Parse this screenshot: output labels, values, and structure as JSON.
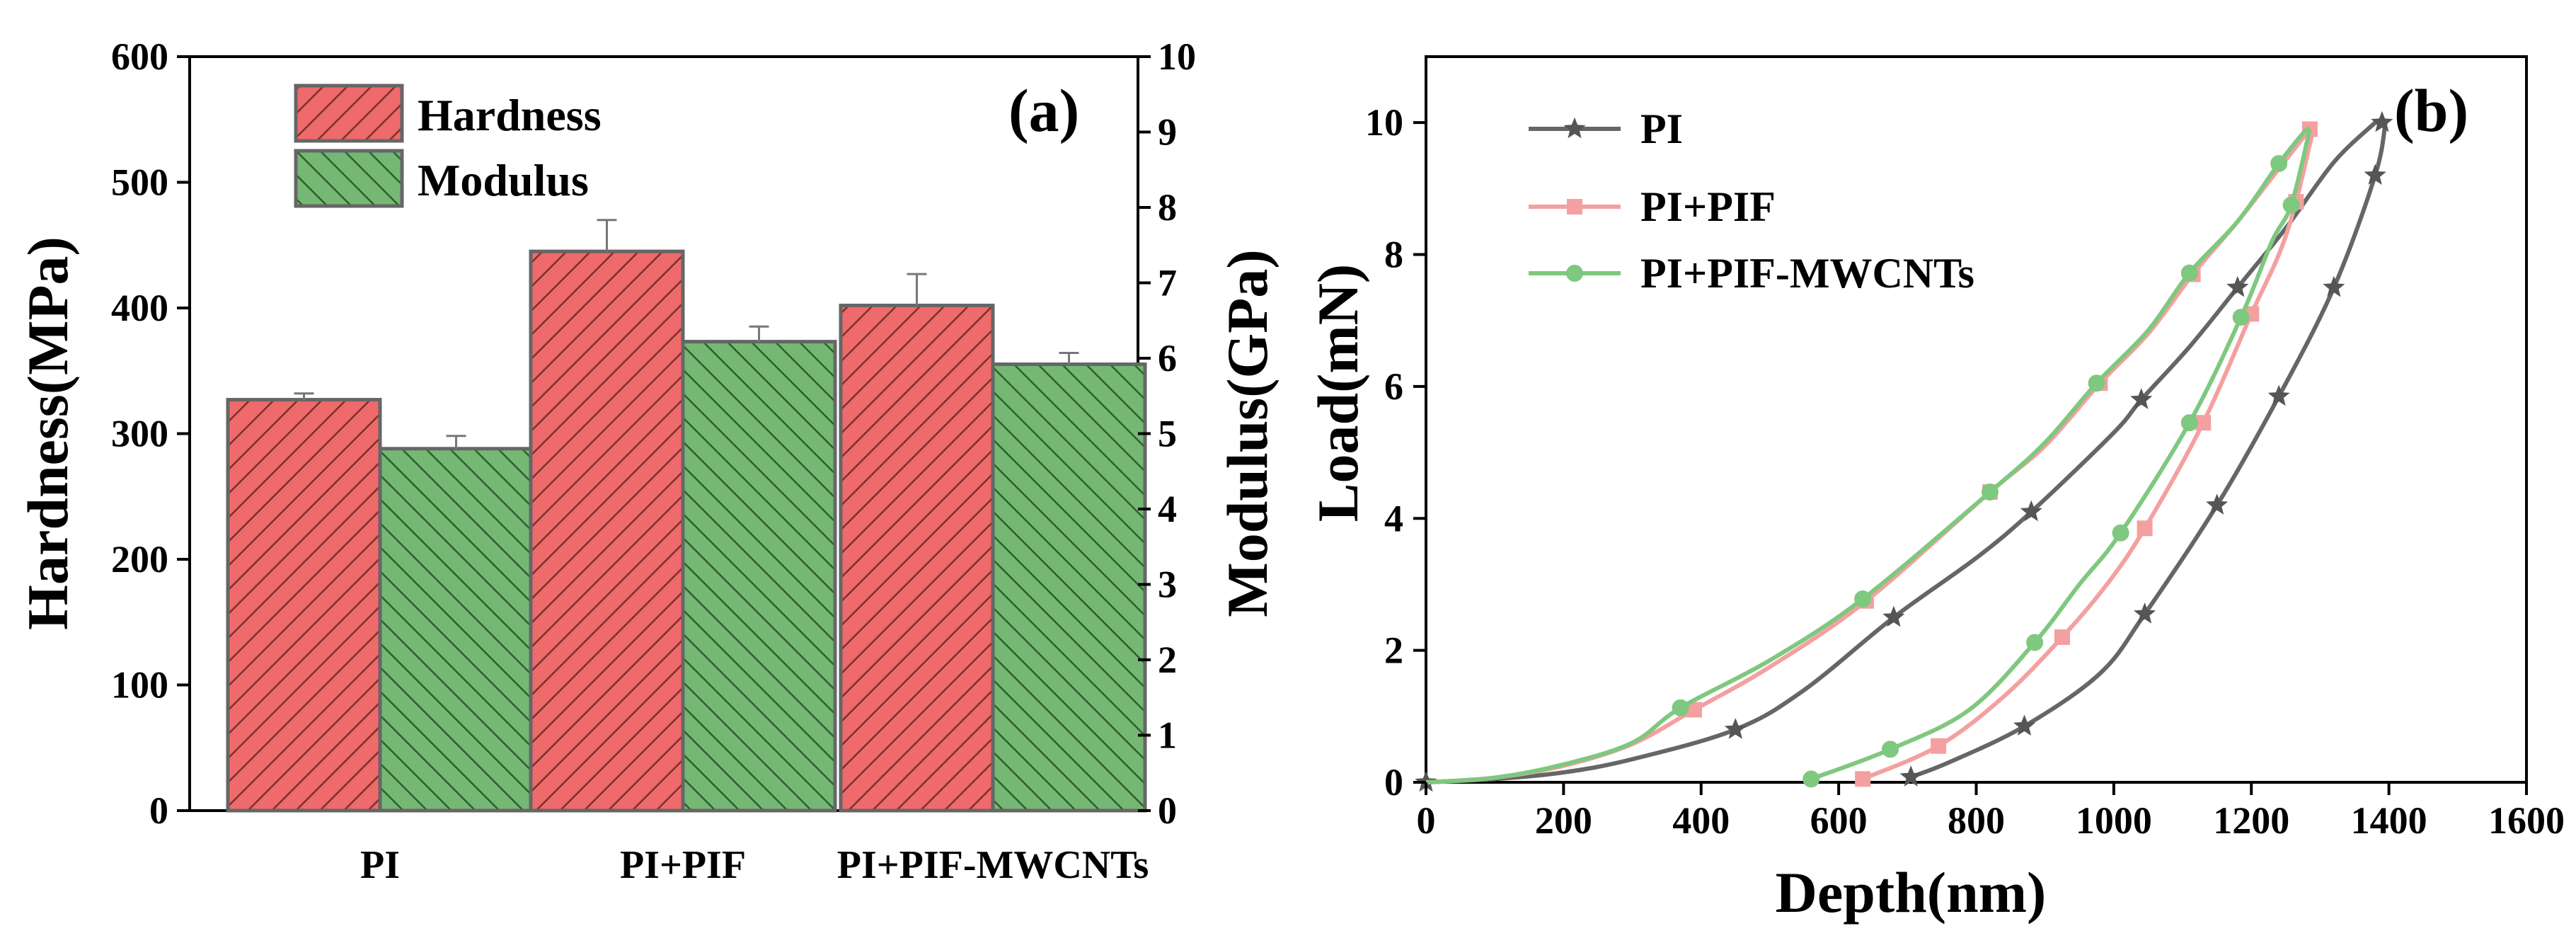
{
  "chart_data": [
    {
      "panel": "(a)",
      "type": "bar",
      "categories": [
        "PI",
        "PI+PIF",
        "PI+PIF-MWCNTs"
      ],
      "ylabel_left": "Hardness(MPa)",
      "ylabel_right": "Modulus(GPa)",
      "ylim_left": [
        0,
        600
      ],
      "ylim_right": [
        0,
        10
      ],
      "yticks_left": [
        "0",
        "100",
        "200",
        "300",
        "400",
        "500",
        "600"
      ],
      "yticks_right": [
        "0",
        "1",
        "2",
        "3",
        "4",
        "5",
        "6",
        "7",
        "8",
        "9",
        "10"
      ],
      "legend_position": "top-left",
      "series": [
        {
          "name": "Hardness",
          "axis": "left",
          "color": "#ef6a6a",
          "hatch_color": "#7a3030",
          "values": [
            327,
            445,
            402
          ],
          "errors": [
            5,
            25,
            25
          ]
        },
        {
          "name": "Modulus",
          "axis": "right",
          "color": "#74b874",
          "hatch_color": "#2f5e2f",
          "values": [
            4.8,
            6.22,
            5.92
          ],
          "errors": [
            0.17,
            0.2,
            0.15
          ]
        }
      ]
    },
    {
      "panel": "(b)",
      "type": "line",
      "xlabel": "Depth(nm)",
      "ylabel": "Load(mN)",
      "xlim": [
        0,
        1600
      ],
      "ylim": [
        0,
        11
      ],
      "xticks": [
        "0",
        "200",
        "400",
        "600",
        "800",
        "1000",
        "1200",
        "1400",
        "1600"
      ],
      "yticks": [
        "0",
        "2",
        "4",
        "6",
        "8",
        "10"
      ],
      "legend_position": "top-left",
      "series": [
        {
          "name": "PI",
          "color": "#666666",
          "marker": "star",
          "loading": [
            [
              0,
              0
            ],
            [
              100,
              0.05
            ],
            [
              200,
              0.15
            ],
            [
              300,
              0.35
            ],
            [
              450,
              0.8
            ],
            [
              550,
              1.4
            ],
            [
              680,
              2.5
            ],
            [
              800,
              3.4
            ],
            [
              880,
              4.1
            ],
            [
              1000,
              5.3
            ],
            [
              1040,
              5.8
            ],
            [
              1110,
              6.6
            ],
            [
              1180,
              7.5
            ],
            [
              1250,
              8.4
            ],
            [
              1320,
              9.4
            ],
            [
              1380,
              10.0
            ]
          ],
          "unloading": [
            [
              1395,
              10.0
            ],
            [
              1380,
              9.2
            ],
            [
              1320,
              7.5
            ],
            [
              1240,
              5.85
            ],
            [
              1150,
              4.2
            ],
            [
              1045,
              2.55
            ],
            [
              980,
              1.65
            ],
            [
              870,
              0.85
            ],
            [
              760,
              0.3
            ],
            [
              705,
              0.08
            ]
          ],
          "markers": [
            [
              0,
              0
            ],
            [
              450,
              0.8
            ],
            [
              680,
              2.5
            ],
            [
              880,
              4.1
            ],
            [
              1040,
              5.8
            ],
            [
              1180,
              7.5
            ],
            [
              1390,
              10.0
            ],
            [
              1380,
              9.2
            ],
            [
              1320,
              7.5
            ],
            [
              1240,
              5.85
            ],
            [
              1150,
              4.2
            ],
            [
              1045,
              2.55
            ],
            [
              870,
              0.85
            ],
            [
              705,
              0.08
            ]
          ]
        },
        {
          "name": "PI+PIF",
          "color": "#f4a0a0",
          "marker": "square",
          "loading": [
            [
              0,
              0
            ],
            [
              100,
              0.07
            ],
            [
              200,
              0.25
            ],
            [
              300,
              0.58
            ],
            [
              390,
              1.1
            ],
            [
              500,
              1.75
            ],
            [
              640,
              2.75
            ],
            [
              820,
              4.4
            ],
            [
              900,
              5.1
            ],
            [
              980,
              6.05
            ],
            [
              1050,
              6.8
            ],
            [
              1115,
              7.7
            ],
            [
              1180,
              8.5
            ],
            [
              1240,
              9.3
            ],
            [
              1285,
              9.9
            ]
          ],
          "unloading": [
            [
              1290,
              9.9
            ],
            [
              1265,
              8.8
            ],
            [
              1240,
              8.0
            ],
            [
              1200,
              7.1
            ],
            [
              1130,
              5.45
            ],
            [
              1045,
              3.85
            ],
            [
              990,
              3.0
            ],
            [
              925,
              2.2
            ],
            [
              840,
              1.3
            ],
            [
              745,
              0.55
            ],
            [
              635,
              0.05
            ]
          ],
          "markers": [
            [
              390,
              1.1
            ],
            [
              640,
              2.75
            ],
            [
              820,
              4.4
            ],
            [
              980,
              6.05
            ],
            [
              1115,
              7.7
            ],
            [
              1285,
              9.9
            ],
            [
              1265,
              8.8
            ],
            [
              1200,
              7.1
            ],
            [
              1130,
              5.45
            ],
            [
              1045,
              3.85
            ],
            [
              925,
              2.2
            ],
            [
              745,
              0.55
            ],
            [
              635,
              0.05
            ]
          ]
        },
        {
          "name": "PI+PIF-MWCNTs",
          "color": "#7fc87f",
          "marker": "circle",
          "loading": [
            [
              0,
              0
            ],
            [
              100,
              0.07
            ],
            [
              200,
              0.27
            ],
            [
              300,
              0.6
            ],
            [
              370,
              1.13
            ],
            [
              500,
              1.85
            ],
            [
              635,
              2.78
            ],
            [
              820,
              4.4
            ],
            [
              900,
              5.15
            ],
            [
              975,
              6.05
            ],
            [
              1050,
              6.85
            ],
            [
              1110,
              7.72
            ],
            [
              1180,
              8.5
            ],
            [
              1240,
              9.38
            ],
            [
              1280,
              9.9
            ]
          ],
          "unloading": [
            [
              1285,
              9.9
            ],
            [
              1258,
              8.75
            ],
            [
              1230,
              8.2
            ],
            [
              1185,
              7.05
            ],
            [
              1110,
              5.45
            ],
            [
              1010,
              3.78
            ],
            [
              950,
              3.0
            ],
            [
              885,
              2.12
            ],
            [
              790,
              1.1
            ],
            [
              675,
              0.5
            ],
            [
              560,
              0.05
            ]
          ],
          "markers": [
            [
              370,
              1.13
            ],
            [
              635,
              2.78
            ],
            [
              820,
              4.4
            ],
            [
              975,
              6.05
            ],
            [
              1110,
              7.72
            ],
            [
              1240,
              9.38
            ],
            [
              1258,
              8.75
            ],
            [
              1185,
              7.05
            ],
            [
              1110,
              5.45
            ],
            [
              1010,
              3.78
            ],
            [
              885,
              2.12
            ],
            [
              675,
              0.5
            ],
            [
              560,
              0.05
            ]
          ]
        }
      ]
    }
  ]
}
